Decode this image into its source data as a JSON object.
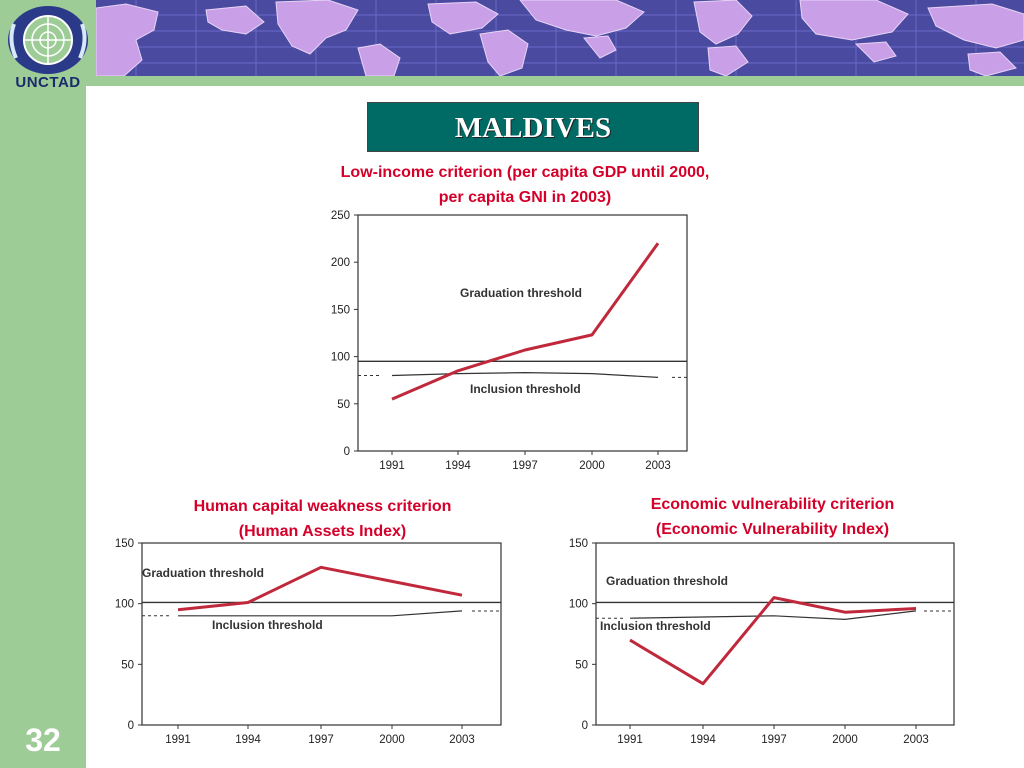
{
  "header": {
    "org_name": "UNCTAD",
    "slide_title": "MALDIVES",
    "slide_number": "32",
    "colors": {
      "frame": "#9dcc97",
      "title_box": "#006a64",
      "caption": "#d4002a",
      "series": "#c0283c",
      "banner": "#4a4aa0"
    }
  },
  "captions": {
    "top": [
      "Low-income criterion (per capita GDP until 2000,",
      "per capita GNI in 2003)"
    ],
    "left": [
      "Human capital weakness criterion",
      "(Human Assets Index)"
    ],
    "right": [
      "Economic vulnerability criterion",
      "(Economic Vulnerability Index)"
    ]
  },
  "chart_data": [
    {
      "type": "line",
      "categories": [
        "1991",
        "1994",
        "1997",
        "2000",
        "2003"
      ],
      "ylim": [
        0,
        250
      ],
      "yticks": [
        "0",
        "50",
        "100",
        "150",
        "200",
        "250"
      ],
      "series": [
        {
          "values": [
            55,
            85,
            107,
            123,
            220
          ]
        },
        {
          "name": "Inclusion threshold",
          "values": [
            80,
            82,
            83,
            82,
            78
          ]
        },
        {
          "name": "Graduation threshold",
          "values": [
            95,
            95,
            95,
            95,
            95
          ]
        }
      ],
      "annotations": [
        "Graduation threshold",
        "Inclusion threshold"
      ]
    },
    {
      "type": "line",
      "categories": [
        "1991",
        "1994",
        "1997",
        "2000",
        "2003"
      ],
      "ylim": [
        0,
        150
      ],
      "yticks": [
        "0",
        "50",
        "100",
        "150"
      ],
      "series": [
        {
          "values": [
            95,
            101,
            130,
            null,
            107
          ]
        },
        {
          "name": "Inclusion threshold",
          "values": [
            90,
            90,
            90,
            90,
            94
          ]
        },
        {
          "name": "Graduation threshold",
          "values": [
            101,
            101,
            101,
            101,
            101
          ]
        }
      ],
      "annotations": [
        "Graduation threshold",
        "Inclusion threshold"
      ]
    },
    {
      "type": "line",
      "categories": [
        "1991",
        "1994",
        "1997",
        "2000",
        "2003"
      ],
      "ylim": [
        0,
        150
      ],
      "yticks": [
        "0",
        "50",
        "100",
        "150"
      ],
      "series": [
        {
          "values": [
            70,
            34,
            105,
            93,
            96
          ]
        },
        {
          "name": "Inclusion threshold",
          "values": [
            88,
            89,
            90,
            87,
            94
          ]
        },
        {
          "name": "Graduation threshold",
          "values": [
            101,
            101,
            101,
            101,
            101
          ]
        }
      ],
      "annotations": [
        "Graduation threshold",
        "Inclusion threshold"
      ]
    }
  ]
}
